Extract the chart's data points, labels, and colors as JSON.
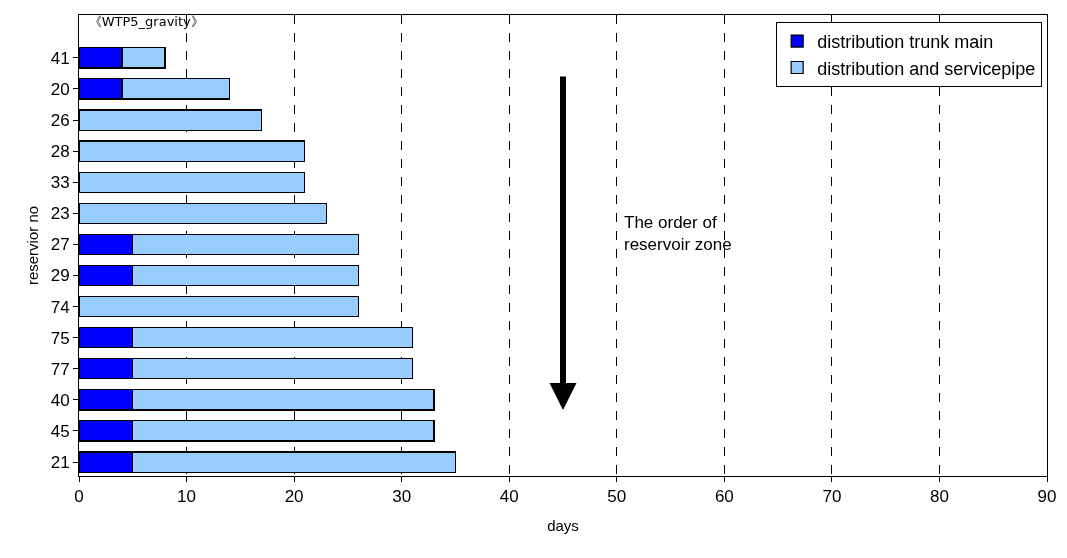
{
  "chart_data": {
    "type": "bar",
    "orientation": "horizontal",
    "stacked": true,
    "title": "《WTP5_gravity》",
    "xlabel": "days",
    "ylabel": "reservior no",
    "categories": [
      "41",
      "20",
      "26",
      "28",
      "33",
      "23",
      "27",
      "29",
      "74",
      "75",
      "77",
      "40",
      "45",
      "21"
    ],
    "series": [
      {
        "name": "distribution trunk main",
        "color": "#0000ff",
        "values": [
          4,
          4,
          0,
          0,
          0,
          0,
          5,
          5,
          0,
          5,
          5,
          5,
          5,
          5
        ]
      },
      {
        "name": "distribution and servicepipe",
        "color": "#99ccff",
        "values": [
          4,
          10,
          17,
          21,
          21,
          23,
          21,
          21,
          26,
          26,
          26,
          28,
          28,
          30
        ]
      }
    ],
    "xlim": [
      0,
      90
    ],
    "xticks": [
      0,
      10,
      20,
      30,
      40,
      50,
      60,
      70,
      80,
      90
    ],
    "grid": "x",
    "legend": "top right",
    "annotations": [
      "The order of reservoir zone"
    ]
  }
}
